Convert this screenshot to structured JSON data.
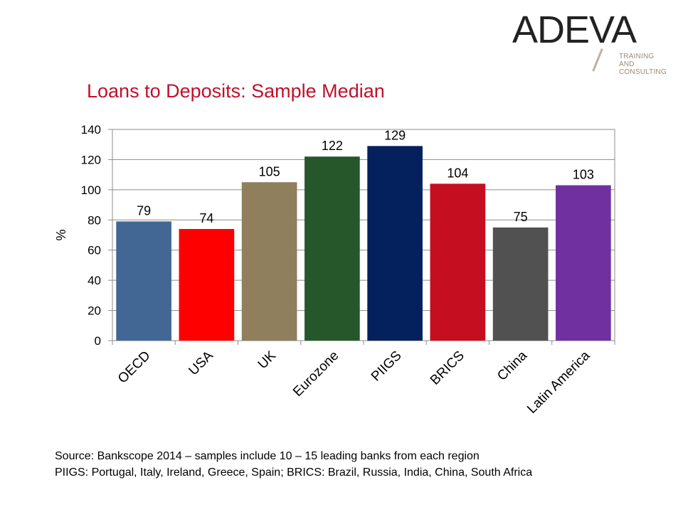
{
  "logo": {
    "word": "ADEVA",
    "line1": "TRAINING AND",
    "line2": "CONSULTING"
  },
  "title": "Loans to Deposits: Sample Median",
  "chart_data": {
    "type": "bar",
    "categories": [
      "OECD",
      "USA",
      "UK",
      "Eurozone",
      "PIIGS",
      "BRICS",
      "China",
      "Latin America"
    ],
    "values": [
      79,
      74,
      105,
      122,
      129,
      104,
      75,
      103
    ],
    "colors": [
      "#436794",
      "#fe0000",
      "#8f7f5c",
      "#26572b",
      "#04215e",
      "#c50e20",
      "#515151",
      "#7030a0"
    ],
    "ylabel": "%",
    "xlabel": "",
    "ylim": [
      0,
      140
    ],
    "yticks": [
      0,
      20,
      40,
      60,
      80,
      100,
      120,
      140
    ],
    "grid": true,
    "legend": "none",
    "data_labels": true
  },
  "footer": {
    "line1": "Source: Bankscope 2014 – samples include 10 – 15 leading banks from each region",
    "line2": "PIIGS: Portugal, Italy, Ireland, Greece, Spain; BRICS: Brazil, Russia, India, China, South Africa"
  }
}
